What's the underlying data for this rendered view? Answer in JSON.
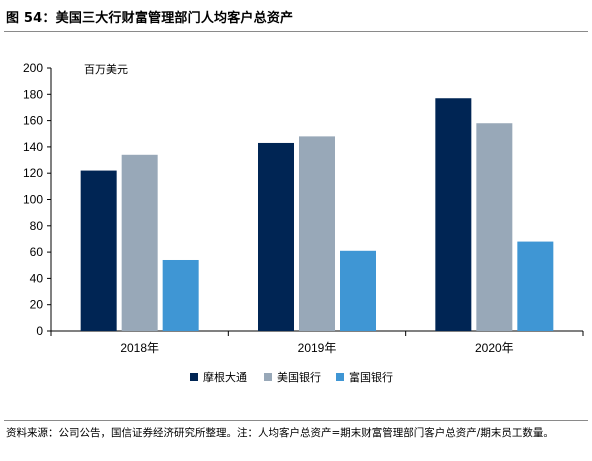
{
  "figure": {
    "title": "图 54：美国三大行财富管理部门人均客户总资产",
    "source": "资料来源：公司公告，国信证券经济研究所整理。注：人均客户总资产=期末财富管理部门客户总资产/期末员工数量。"
  },
  "chart_data": {
    "type": "bar",
    "title": "",
    "xlabel": "",
    "ylabel": "百万美元",
    "ylim": [
      0,
      200
    ],
    "yticks": [
      0,
      20,
      40,
      60,
      80,
      100,
      120,
      140,
      160,
      180,
      200
    ],
    "categories": [
      "2018年",
      "2019年",
      "2020年"
    ],
    "series": [
      {
        "name": "摩根大通",
        "color": "#002554",
        "values": [
          122,
          143,
          177
        ]
      },
      {
        "name": "美国银行",
        "color": "#98a8b8",
        "values": [
          134,
          148,
          158
        ]
      },
      {
        "name": "富国银行",
        "color": "#3f96d4",
        "values": [
          54,
          61,
          68
        ]
      }
    ],
    "legend_position": "bottom",
    "grid": false
  }
}
